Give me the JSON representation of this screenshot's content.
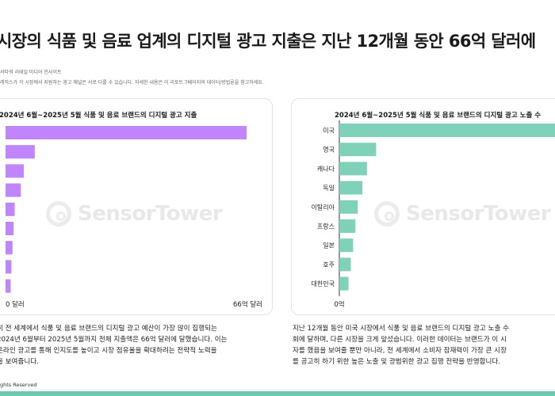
{
  "header": {
    "title": "시장의 식품 및 음료 업계의 디지털 광고 지출은 지난 12개월 동안 66억 달러에",
    "source": "서타워 리테일 미디어 인사이트",
    "note": "레믹스가 각 시장에서 지원하는 광고 채널은 서로 다를 수 있습니다. 자세한 내용은 이 리포트 7페이지의 데이터/방법론을 참고하세요."
  },
  "watermark": "SensorTower",
  "paragraphs": {
    "left": [
      "히 전 세계에서 식품 및 음료 브랜드의 디지털 광고 예산이 가장 많이 집행되는",
      "2024년 6월부터 2025년 5월까지 전체 지출액은 66억 달러에 달했습니다. 이는",
      "온라인 광고를 통해 인지도를 높이고 시장 점유율을 확대하려는 전략적 노력을",
      "을 보여줍니다."
    ],
    "right": [
      "지난 12개월 동안 미국 시장에서 식품 및 음료 브랜드의 디지털 광고 노출 수",
      "회에 달하며, 다른 시장을 크게 앞섰습니다. 이러한 데이터는 브랜드가 이 시",
      "자를 했음을 보여줄 뿐만 아니라, 전 세계에서 소비자 잠재력이 가장 큰 시장",
      "를 공고히 하기 위한 높은 노출 및 광범위한 광고 집행 전략을 반영합니다."
    ]
  },
  "footer": "ghts Reserved",
  "colors": {
    "left_bar": "#c084fc",
    "right_bar": "#7fd1b9",
    "accent": "#6fc7b0"
  },
  "chart_data": [
    {
      "type": "bar",
      "orientation": "horizontal",
      "title": "2024년 6월~2025년 5월 식품 및 음료 브랜드의 디지털 광고 지출",
      "categories": [
        "",
        "",
        "",
        "",
        "",
        "",
        "",
        "",
        ""
      ],
      "values": [
        6.6,
        0.8,
        0.5,
        0.42,
        0.25,
        0.22,
        0.19,
        0.16,
        0.14
      ],
      "xlim": [
        0,
        6.6
      ],
      "tick_labels": [
        "0 달러",
        "66억 달러"
      ],
      "color": "#c084fc"
    },
    {
      "type": "bar",
      "orientation": "horizontal",
      "title": "2024년 6월~2025년 5월 식품 및 음료 브랜드의 디지털 광고 노출 수",
      "categories": [
        "미국",
        "영국",
        "캐나다",
        "독일",
        "이탈리아",
        "프랑스",
        "일본",
        "호주",
        "대한민국"
      ],
      "values": [
        100,
        16,
        12,
        10,
        8,
        7,
        6,
        5,
        4
      ],
      "xlim": [
        0,
        100
      ],
      "tick_labels": [
        "0억"
      ],
      "color": "#7fd1b9"
    }
  ]
}
